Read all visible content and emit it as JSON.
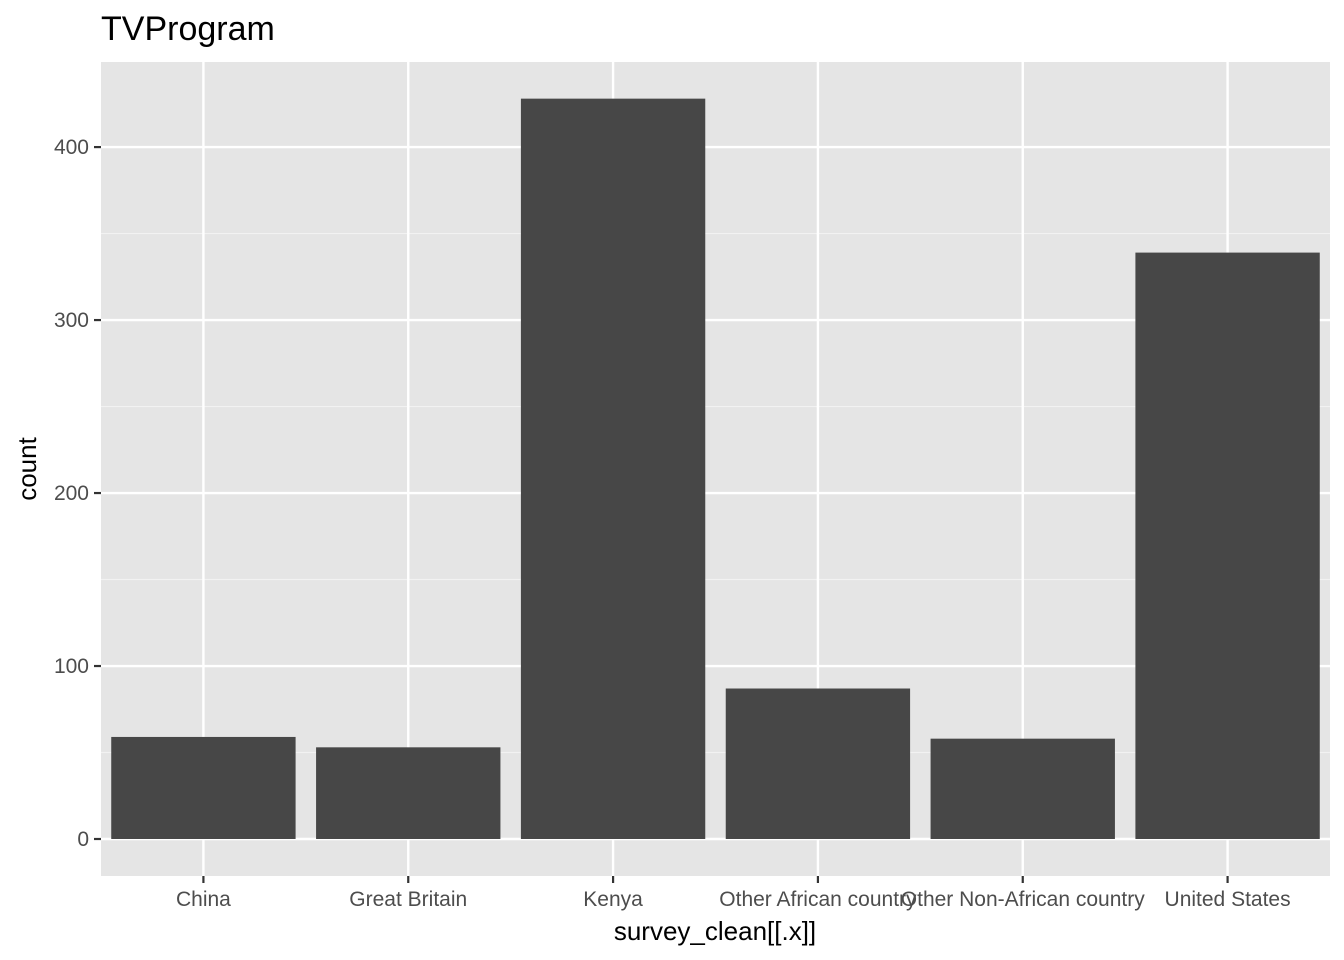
{
  "chart_data": {
    "type": "bar",
    "title": "TVProgram",
    "xlabel": "survey_clean[[.x]]",
    "ylabel": "count",
    "categories": [
      "China",
      "Great Britain",
      "Kenya",
      "Other African country",
      "Other Non-African country",
      "United States"
    ],
    "values": [
      59,
      53,
      428,
      87,
      58,
      339
    ],
    "ylim": [
      0,
      450
    ],
    "yticks": [
      0,
      100,
      200,
      300,
      400
    ],
    "grid": true,
    "legend": "none",
    "colors": {
      "bar": "#474747",
      "panel": "#e5e5e5",
      "grid_major": "#ffffff",
      "grid_minor": "#f2f2f2",
      "tick": "#333333",
      "tick_label": "#4d4d4d"
    }
  }
}
